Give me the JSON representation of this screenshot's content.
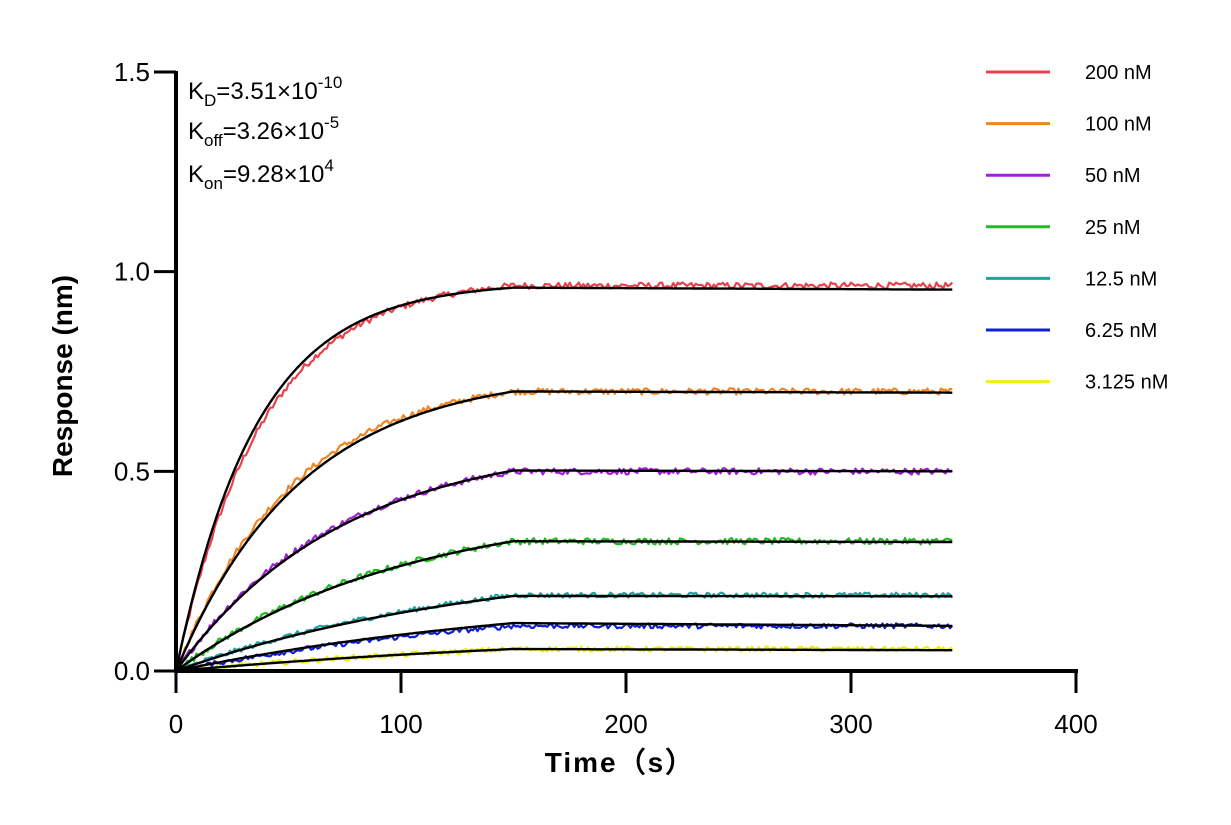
{
  "chart_data": {
    "type": "line",
    "xlabel": "Time（s）",
    "ylabel": "Response (nm)",
    "xlim": [
      0,
      400
    ],
    "ylim": [
      0,
      1.5
    ],
    "xticks": [
      0,
      100,
      200,
      300,
      400
    ],
    "yticks": [
      0.0,
      0.5,
      1.0,
      1.5
    ],
    "xtick_labels": [
      "0",
      "100",
      "200",
      "300",
      "400"
    ],
    "ytick_labels": [
      "0.0",
      "0.5",
      "1.0",
      "1.5"
    ],
    "grid": false,
    "legend_position": "right",
    "association_end": 150,
    "end_time": 345,
    "annotations": {
      "kd": {
        "label": "K",
        "sub": "D",
        "value": "=3.51×10",
        "exp": "-10"
      },
      "koff": {
        "label": "K",
        "sub": "off",
        "value": "=3.26×10",
        "exp": "-5"
      },
      "kon": {
        "label": "K",
        "sub": "on",
        "value": "=9.28×10",
        "exp": "4"
      }
    },
    "series": [
      {
        "name": "200 nM",
        "color": "#e8424b",
        "plateau": 0.965,
        "fit_plateau": 0.96,
        "fit_end": 0.955
      },
      {
        "name": "100 nM",
        "color": "#f08522",
        "plateau": 0.7,
        "fit_plateau": 0.7,
        "fit_end": 0.697
      },
      {
        "name": "50 nM",
        "color": "#a020d8",
        "plateau": 0.5,
        "fit_plateau": 0.502,
        "fit_end": 0.5
      },
      {
        "name": "25 nM",
        "color": "#22bb22",
        "plateau": 0.325,
        "fit_plateau": 0.325,
        "fit_end": 0.323
      },
      {
        "name": "12.5 nM",
        "color": "#1fa3a3",
        "plateau": 0.19,
        "fit_plateau": 0.188,
        "fit_end": 0.187
      },
      {
        "name": "6.25 nM",
        "color": "#1020d0",
        "plateau": 0.113,
        "fit_plateau": 0.12,
        "fit_end": 0.113
      },
      {
        "name": "3.125 nM",
        "color": "#f0ee10",
        "plateau": 0.055,
        "fit_plateau": 0.055,
        "fit_end": 0.052
      }
    ],
    "fit_color": "#000000"
  }
}
